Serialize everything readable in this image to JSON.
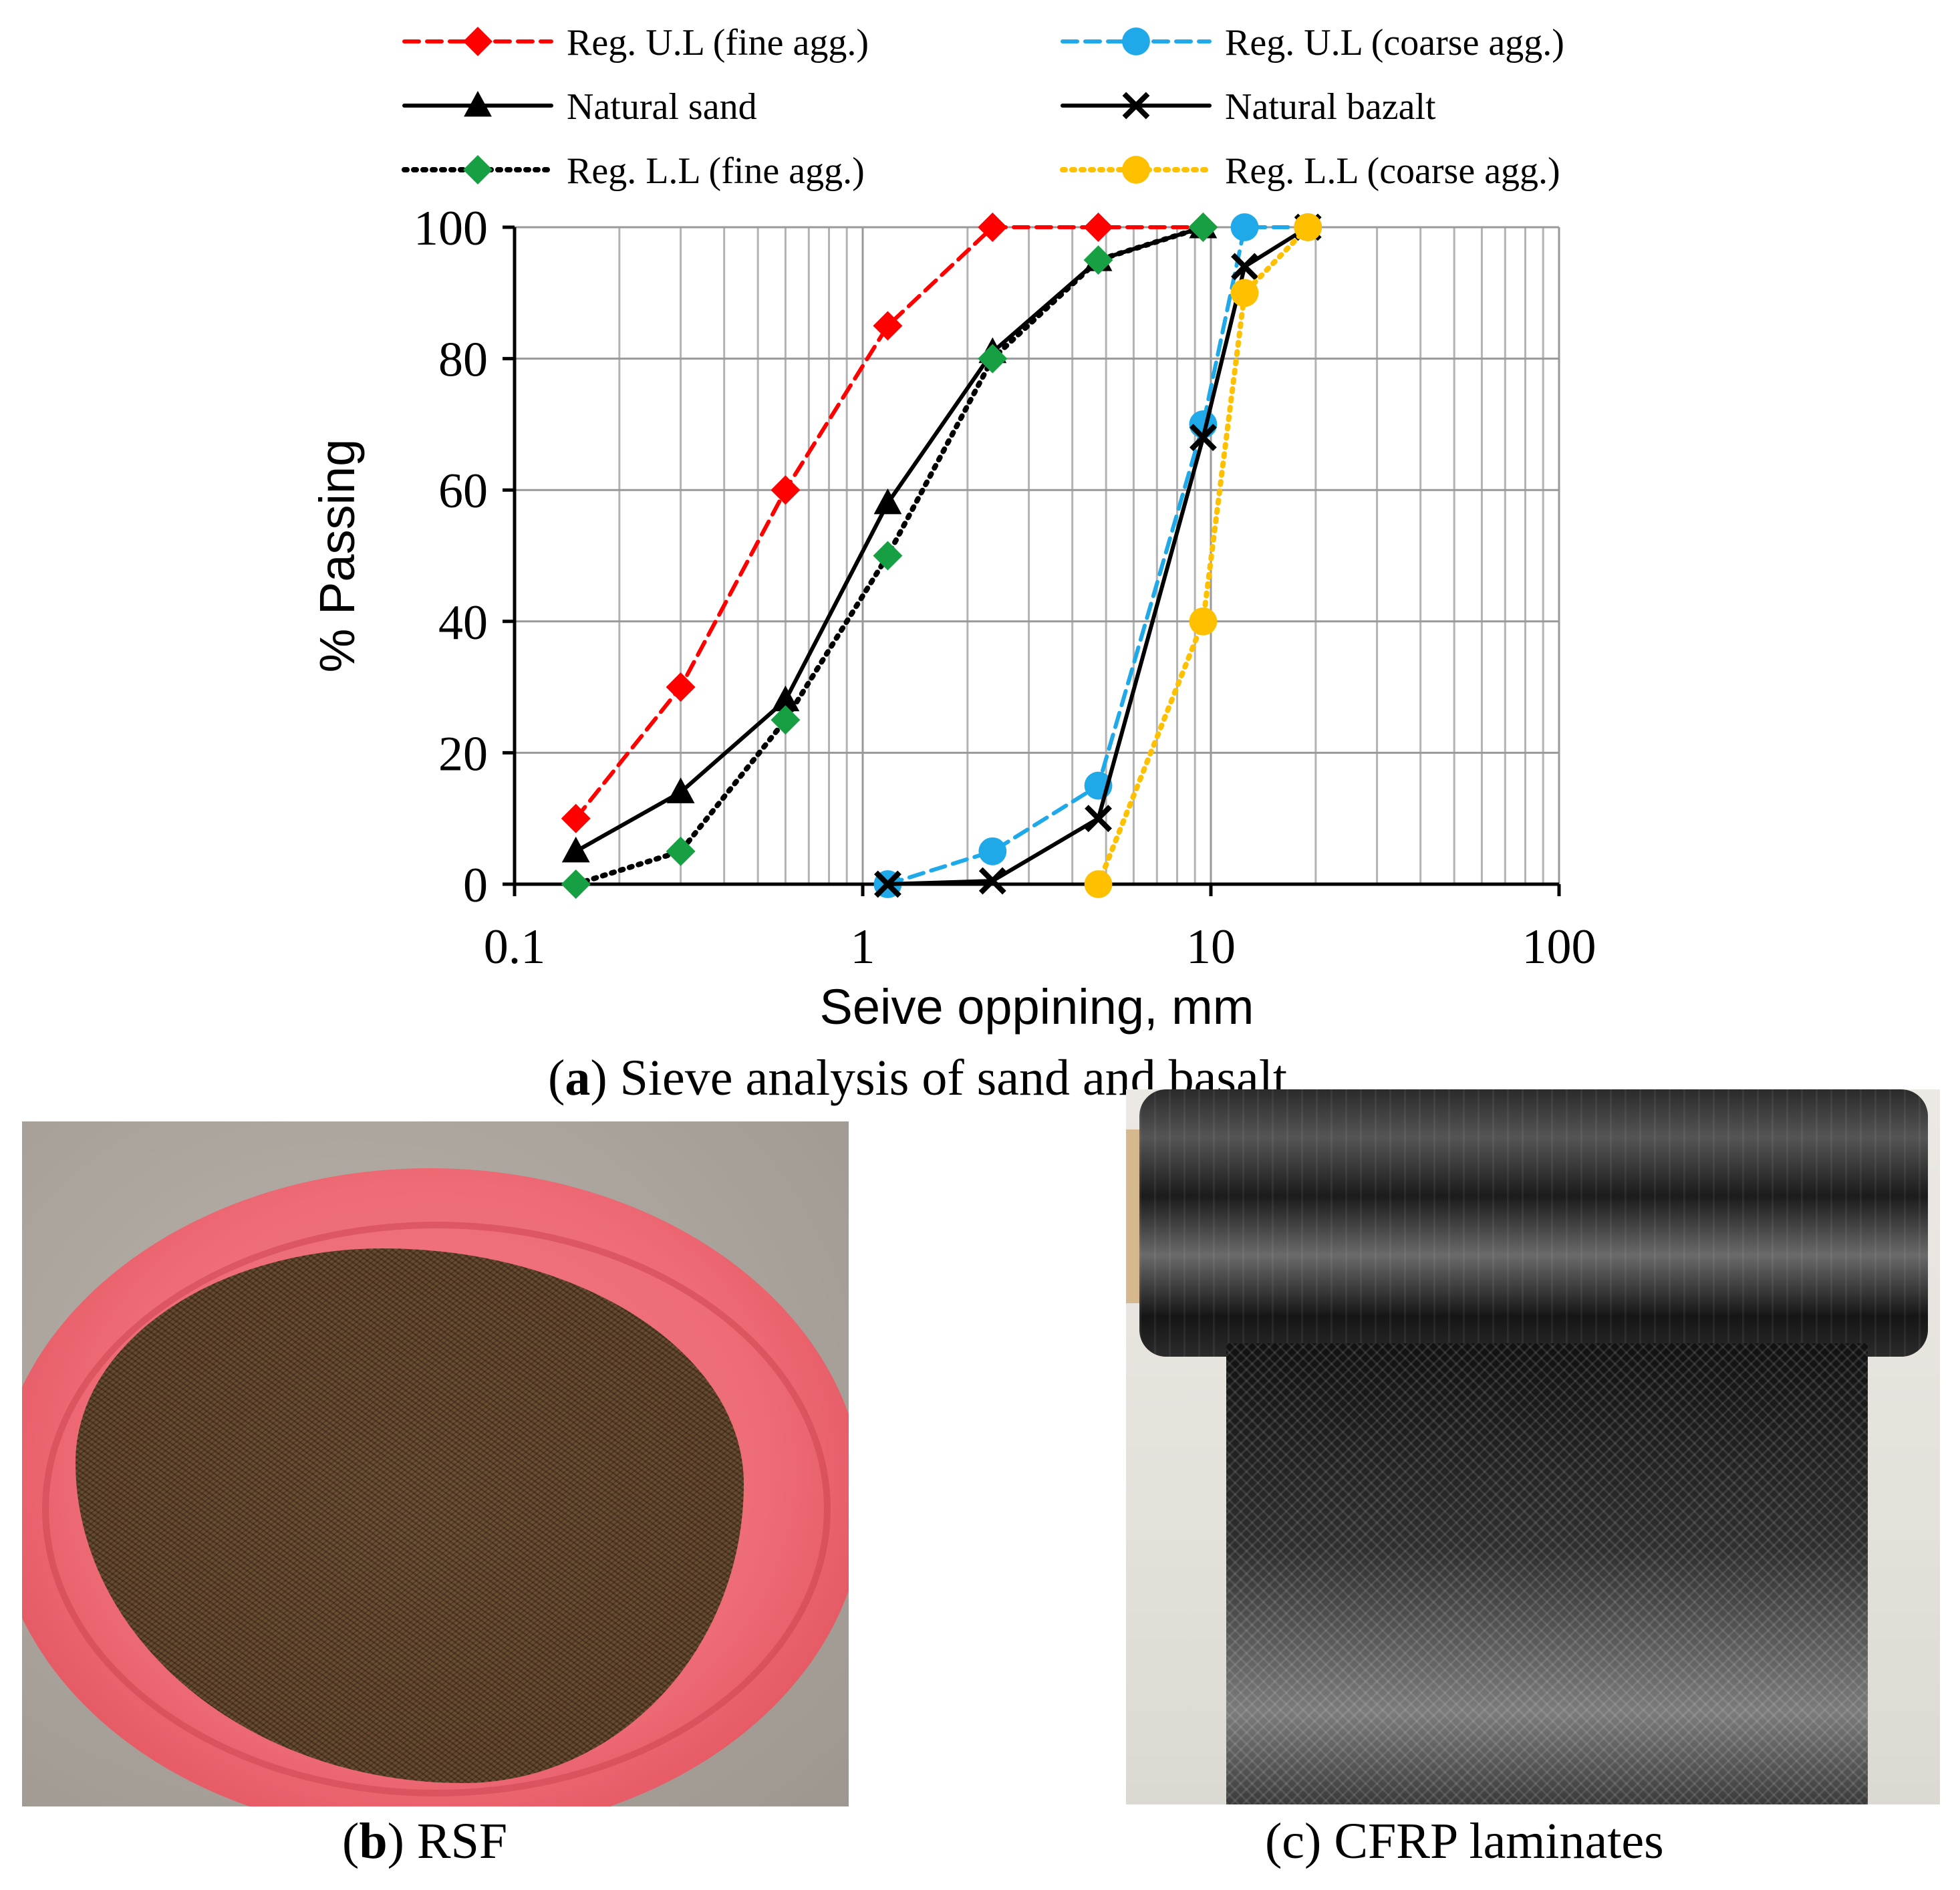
{
  "chart_data": {
    "type": "line",
    "title": "",
    "xlabel": "Seive oppining, mm",
    "ylabel": "% Passing",
    "xscale": "log",
    "xlim": [
      0.1,
      100
    ],
    "ylim": [
      0,
      100
    ],
    "x_ticks": [
      0.1,
      1,
      10,
      100
    ],
    "x_tick_labels": [
      "0.1",
      "1",
      "10",
      "100"
    ],
    "y_ticks": [
      0,
      20,
      40,
      60,
      80,
      100
    ],
    "y_tick_labels": [
      "0",
      "20",
      "40",
      "60",
      "80",
      "100"
    ],
    "grid": true,
    "legend_position": "top",
    "series": [
      {
        "name": "Reg. U.L (fine agg.)",
        "color": "#ff0000",
        "dash": "dashed",
        "marker": "diamond",
        "x": [
          0.15,
          0.3,
          0.6,
          1.18,
          2.36,
          4.75,
          9.5
        ],
        "y": [
          10,
          30,
          60,
          85,
          100,
          100,
          100
        ]
      },
      {
        "name": "Reg. U.L (coarse agg.)",
        "color": "#1fa9e9",
        "dash": "dashed",
        "marker": "circle",
        "x": [
          1.18,
          2.36,
          4.75,
          9.5,
          12.5,
          19
        ],
        "y": [
          0,
          5,
          15,
          70,
          100,
          100
        ]
      },
      {
        "name": "Natural sand",
        "color": "#000000",
        "dash": "solid",
        "marker": "triangle",
        "x": [
          0.15,
          0.3,
          0.6,
          1.18,
          2.36,
          4.75,
          9.5
        ],
        "y": [
          5,
          14,
          28,
          58,
          81,
          95,
          100
        ]
      },
      {
        "name": "Natural bazalt",
        "color": "#000000",
        "dash": "solid",
        "marker": "x",
        "x": [
          1.18,
          2.36,
          4.75,
          9.5,
          12.5,
          19
        ],
        "y": [
          0,
          0.5,
          10,
          68,
          94,
          100
        ]
      },
      {
        "name": "Reg. L.L (fine agg.)",
        "color": "#000000",
        "dash": "dotted",
        "marker": "diamond",
        "marker_color": "#17a043",
        "x": [
          0.15,
          0.3,
          0.6,
          1.18,
          2.36,
          4.75,
          9.5
        ],
        "y": [
          0,
          5,
          25,
          50,
          80,
          95,
          100
        ]
      },
      {
        "name": "Reg. L.L (coarse agg.)",
        "color": "#ffc000",
        "dash": "dotted",
        "marker": "circle",
        "x": [
          4.75,
          9.5,
          12.5,
          19
        ],
        "y": [
          0,
          40,
          90,
          100
        ]
      }
    ]
  },
  "captions": {
    "a_letter": "a",
    "a_text": " Sieve analysis of sand and basalt",
    "b_letter": "b",
    "b_text": " RSF",
    "c_text": "(c) CFRP laminates"
  },
  "photos": {
    "rsf_icon": "fiber-pile-photo",
    "cfrp_icon": "carbon-fiber-roll-photo"
  }
}
